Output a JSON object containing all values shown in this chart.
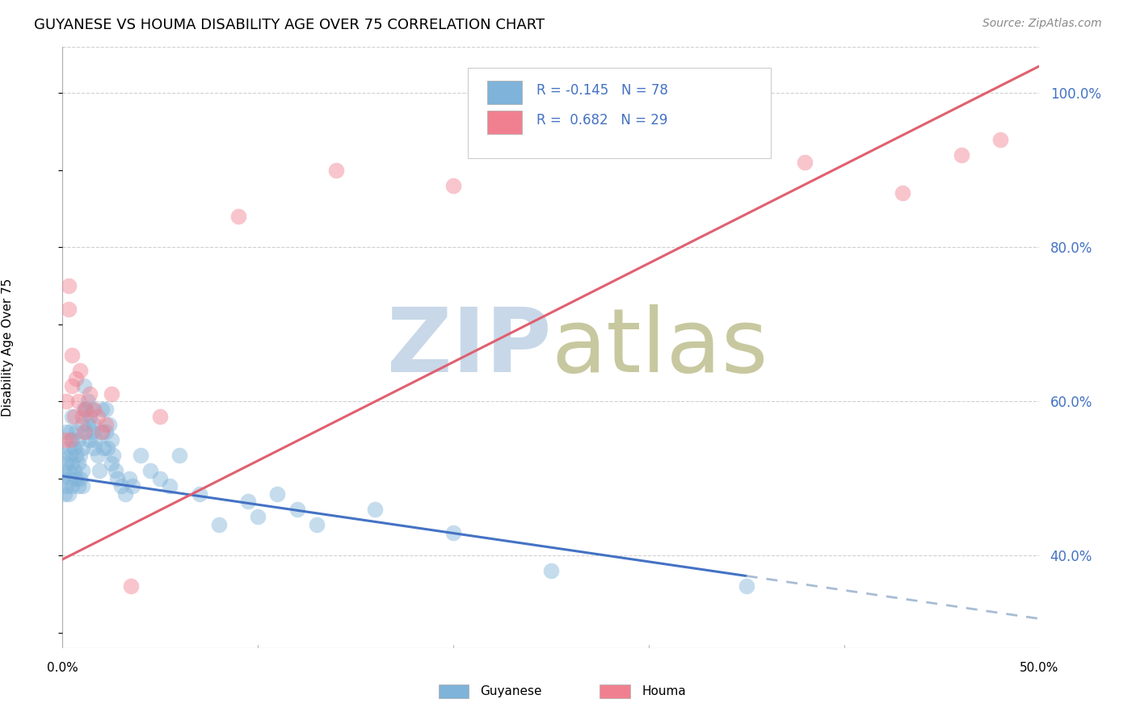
{
  "title": "GUYANESE VS HOUMA DISABILITY AGE OVER 75 CORRELATION CHART",
  "source": "Source: ZipAtlas.com",
  "ylabel": "Disability Age Over 75",
  "xlim": [
    0.0,
    0.5
  ],
  "ylim": [
    0.28,
    1.06
  ],
  "ytick_vals": [
    0.4,
    0.6,
    0.8,
    1.0
  ],
  "background_color": "#ffffff",
  "grid_color": "#d0d0d0",
  "guyanese_color": "#7fb3d9",
  "houma_color": "#f08090",
  "guyanese_line_color": "#4472C4",
  "houma_line_color": "#e06070",
  "right_label_color": "#4472C4",
  "watermark_zip_color": "#c8d8e8",
  "watermark_atlas_color": "#c8c8a0",
  "guyanese_x": [
    0.0,
    0.001,
    0.001,
    0.001,
    0.002,
    0.002,
    0.002,
    0.003,
    0.003,
    0.003,
    0.004,
    0.004,
    0.004,
    0.005,
    0.005,
    0.005,
    0.005,
    0.006,
    0.006,
    0.007,
    0.007,
    0.007,
    0.008,
    0.008,
    0.008,
    0.009,
    0.009,
    0.01,
    0.01,
    0.01,
    0.01,
    0.011,
    0.011,
    0.012,
    0.012,
    0.013,
    0.013,
    0.014,
    0.014,
    0.015,
    0.015,
    0.016,
    0.016,
    0.017,
    0.018,
    0.019,
    0.02,
    0.02,
    0.021,
    0.022,
    0.022,
    0.023,
    0.024,
    0.025,
    0.025,
    0.026,
    0.027,
    0.028,
    0.03,
    0.032,
    0.034,
    0.036,
    0.04,
    0.045,
    0.05,
    0.055,
    0.06,
    0.07,
    0.08,
    0.095,
    0.1,
    0.11,
    0.12,
    0.13,
    0.16,
    0.2,
    0.25,
    0.35
  ],
  "guyanese_y": [
    0.5,
    0.48,
    0.51,
    0.53,
    0.52,
    0.56,
    0.49,
    0.48,
    0.51,
    0.54,
    0.5,
    0.53,
    0.56,
    0.49,
    0.52,
    0.55,
    0.58,
    0.51,
    0.54,
    0.5,
    0.53,
    0.56,
    0.49,
    0.52,
    0.55,
    0.5,
    0.53,
    0.51,
    0.54,
    0.57,
    0.49,
    0.59,
    0.62,
    0.56,
    0.59,
    0.57,
    0.6,
    0.55,
    0.58,
    0.56,
    0.59,
    0.54,
    0.57,
    0.55,
    0.53,
    0.51,
    0.56,
    0.59,
    0.54,
    0.56,
    0.59,
    0.54,
    0.57,
    0.52,
    0.55,
    0.53,
    0.51,
    0.5,
    0.49,
    0.48,
    0.5,
    0.49,
    0.53,
    0.51,
    0.5,
    0.49,
    0.53,
    0.48,
    0.44,
    0.47,
    0.45,
    0.48,
    0.46,
    0.44,
    0.46,
    0.43,
    0.38,
    0.36
  ],
  "houma_x": [
    0.001,
    0.002,
    0.003,
    0.003,
    0.004,
    0.005,
    0.005,
    0.006,
    0.007,
    0.008,
    0.009,
    0.01,
    0.011,
    0.012,
    0.014,
    0.016,
    0.018,
    0.02,
    0.022,
    0.025,
    0.035,
    0.05,
    0.09,
    0.14,
    0.2,
    0.38,
    0.43,
    0.46,
    0.48
  ],
  "houma_y": [
    0.55,
    0.6,
    0.72,
    0.75,
    0.55,
    0.62,
    0.66,
    0.58,
    0.63,
    0.6,
    0.64,
    0.58,
    0.56,
    0.59,
    0.61,
    0.59,
    0.58,
    0.56,
    0.57,
    0.61,
    0.36,
    0.58,
    0.84,
    0.9,
    0.88,
    0.91,
    0.87,
    0.92,
    0.94
  ],
  "guyanese_line_x0": 0.0,
  "guyanese_line_y0": 0.503,
  "guyanese_line_slope": -0.37,
  "guyanese_line_solid_end_x": 0.35,
  "houma_line_x0": 0.0,
  "houma_line_y0": 0.395,
  "houma_line_slope": 1.28
}
